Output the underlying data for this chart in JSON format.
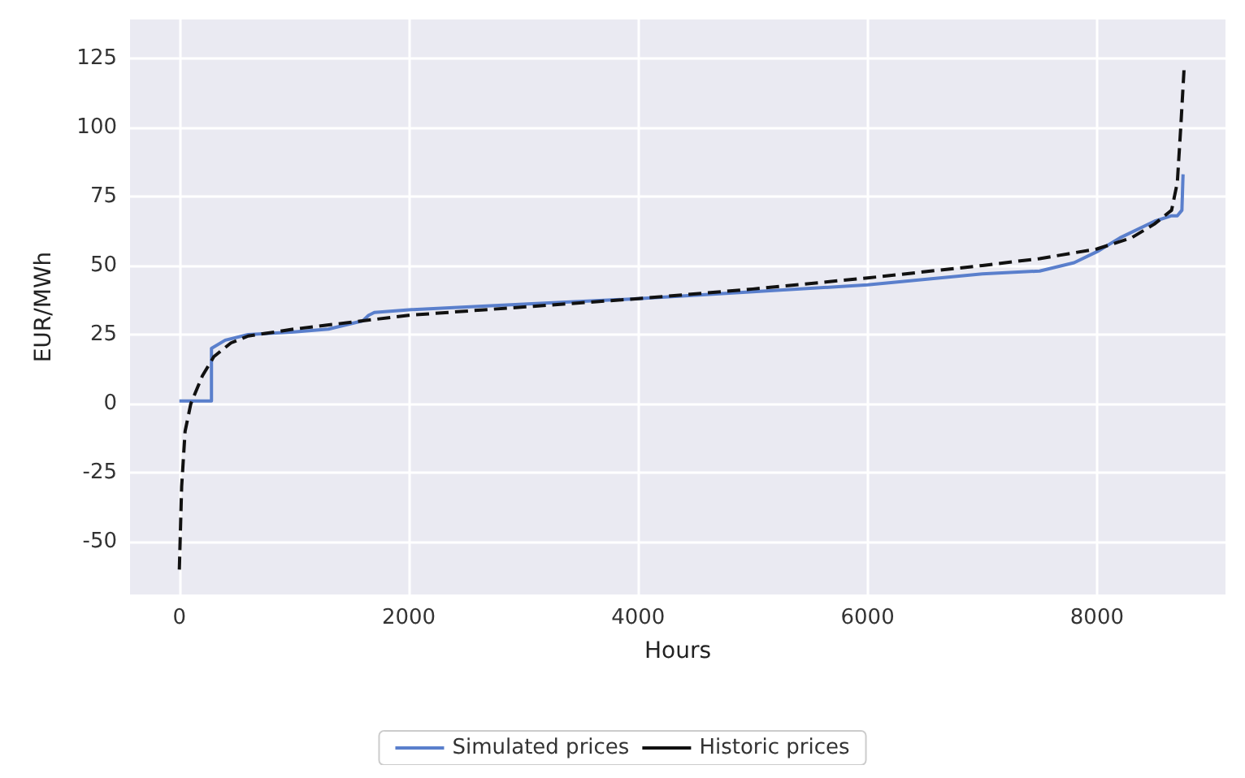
{
  "chart_data": {
    "type": "line",
    "xlabel": "Hours",
    "ylabel": "EUR/MWh",
    "xlim": [
      -430,
      9120
    ],
    "ylim": [
      -69,
      139
    ],
    "xticks": [
      0,
      2000,
      4000,
      6000,
      8000
    ],
    "yticks": [
      -50,
      -25,
      0,
      25,
      50,
      75,
      100,
      125
    ],
    "grid": true,
    "legend": "bottom",
    "marker": "none",
    "series": [
      {
        "name": "Simulated prices",
        "color": "#5a7fcc",
        "line_style": "solid",
        "x": [
          0,
          280,
          280,
          400,
          600,
          1000,
          1300,
          1600,
          1650,
          1700,
          2000,
          3000,
          4000,
          5000,
          6000,
          7000,
          7500,
          7800,
          8000,
          8200,
          8500,
          8650,
          8700,
          8740,
          8750
        ],
        "values": [
          1,
          1,
          20,
          23,
          25,
          26,
          27,
          30,
          32,
          33,
          34,
          36,
          38,
          40.5,
          43,
          47,
          48,
          51,
          55,
          60,
          66,
          68,
          68,
          70,
          83
        ]
      },
      {
        "name": "Historic prices",
        "color": "#111111",
        "line_style": "dashed",
        "x": [
          0,
          20,
          50,
          100,
          200,
          300,
          450,
          600,
          1000,
          1500,
          2000,
          3000,
          4000,
          5000,
          6000,
          7000,
          7500,
          8000,
          8300,
          8500,
          8650,
          8700,
          8730,
          8760
        ],
        "values": [
          -60,
          -30,
          -10,
          0,
          10,
          17,
          22,
          24.5,
          27,
          29.5,
          32,
          35,
          38,
          41.5,
          45.5,
          50,
          52.5,
          56,
          60,
          65,
          70,
          80,
          100,
          122
        ]
      }
    ]
  }
}
